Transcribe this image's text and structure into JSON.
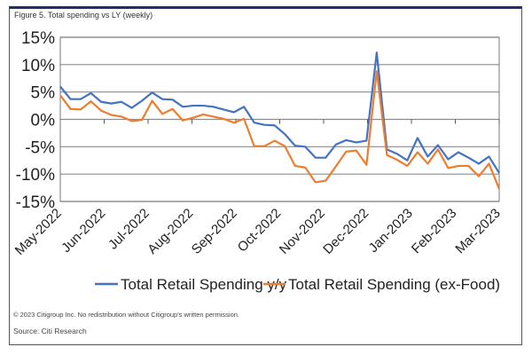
{
  "figure_title": "Figure 5. Total spending vs LY (weekly)",
  "copyright": "© 2023 Citigroup Inc. No redistribution without Citigroup's written permission.",
  "source": "Source: Citi Research",
  "colors": {
    "series1": "#4472C4",
    "series2": "#ED7D31",
    "grid": "#8c8c8c",
    "frame_top": "#1f2f6b"
  },
  "chart_data": {
    "type": "line",
    "title": "Total spending vs LY (weekly)",
    "xlabel": "",
    "ylabel": "",
    "ylim": [
      -15,
      15
    ],
    "yticks": [
      15,
      10,
      5,
      0,
      -5,
      -10,
      -15
    ],
    "ytick_labels": [
      "15%",
      "10%",
      "5%",
      "0%",
      "-5%",
      "-10%",
      "-15%"
    ],
    "xtick_labels": [
      "May-2022",
      "Jun-2022",
      "Jul-2022",
      "Aug-2022",
      "Sep-2022",
      "Oct-2022",
      "Nov-2022",
      "Dec-2022",
      "Jan-2023",
      "Feb-2023",
      "Mar-2023"
    ],
    "grid": true,
    "legend": "bottom",
    "x_frequency": "weekly",
    "series": [
      {
        "name": "Total Retail Spending y/y",
        "color": "#4472C4",
        "values": [
          6.0,
          3.7,
          3.7,
          4.8,
          3.2,
          2.9,
          3.2,
          2.1,
          3.4,
          4.9,
          3.7,
          3.6,
          2.3,
          2.5,
          2.5,
          2.3,
          1.8,
          1.3,
          2.3,
          -0.6,
          -1.0,
          -1.1,
          -2.7,
          -4.8,
          -5.0,
          -7.0,
          -7.0,
          -4.6,
          -3.8,
          -4.2,
          -3.9,
          12.2,
          -5.5,
          -6.3,
          -7.5,
          -3.4,
          -6.8,
          -4.7,
          -7.3,
          -6.0,
          -7.0,
          -8.1,
          -6.8,
          -9.8
        ]
      },
      {
        "name": "Total Retail Spending (ex-Food)",
        "color": "#ED7D31",
        "values": [
          4.4,
          1.9,
          1.8,
          3.3,
          1.6,
          0.8,
          0.5,
          -0.3,
          -0.1,
          3.4,
          1.0,
          1.9,
          -0.2,
          0.3,
          0.9,
          0.5,
          0.1,
          -0.6,
          0.1,
          -4.9,
          -4.9,
          -3.9,
          -4.9,
          -8.5,
          -8.8,
          -11.5,
          -11.2,
          -8.6,
          -5.9,
          -5.7,
          -8.3,
          8.8,
          -6.5,
          -7.4,
          -8.5,
          -6.0,
          -8.1,
          -5.5,
          -8.9,
          -8.5,
          -8.5,
          -10.4,
          -8.1,
          -12.7
        ]
      }
    ]
  }
}
